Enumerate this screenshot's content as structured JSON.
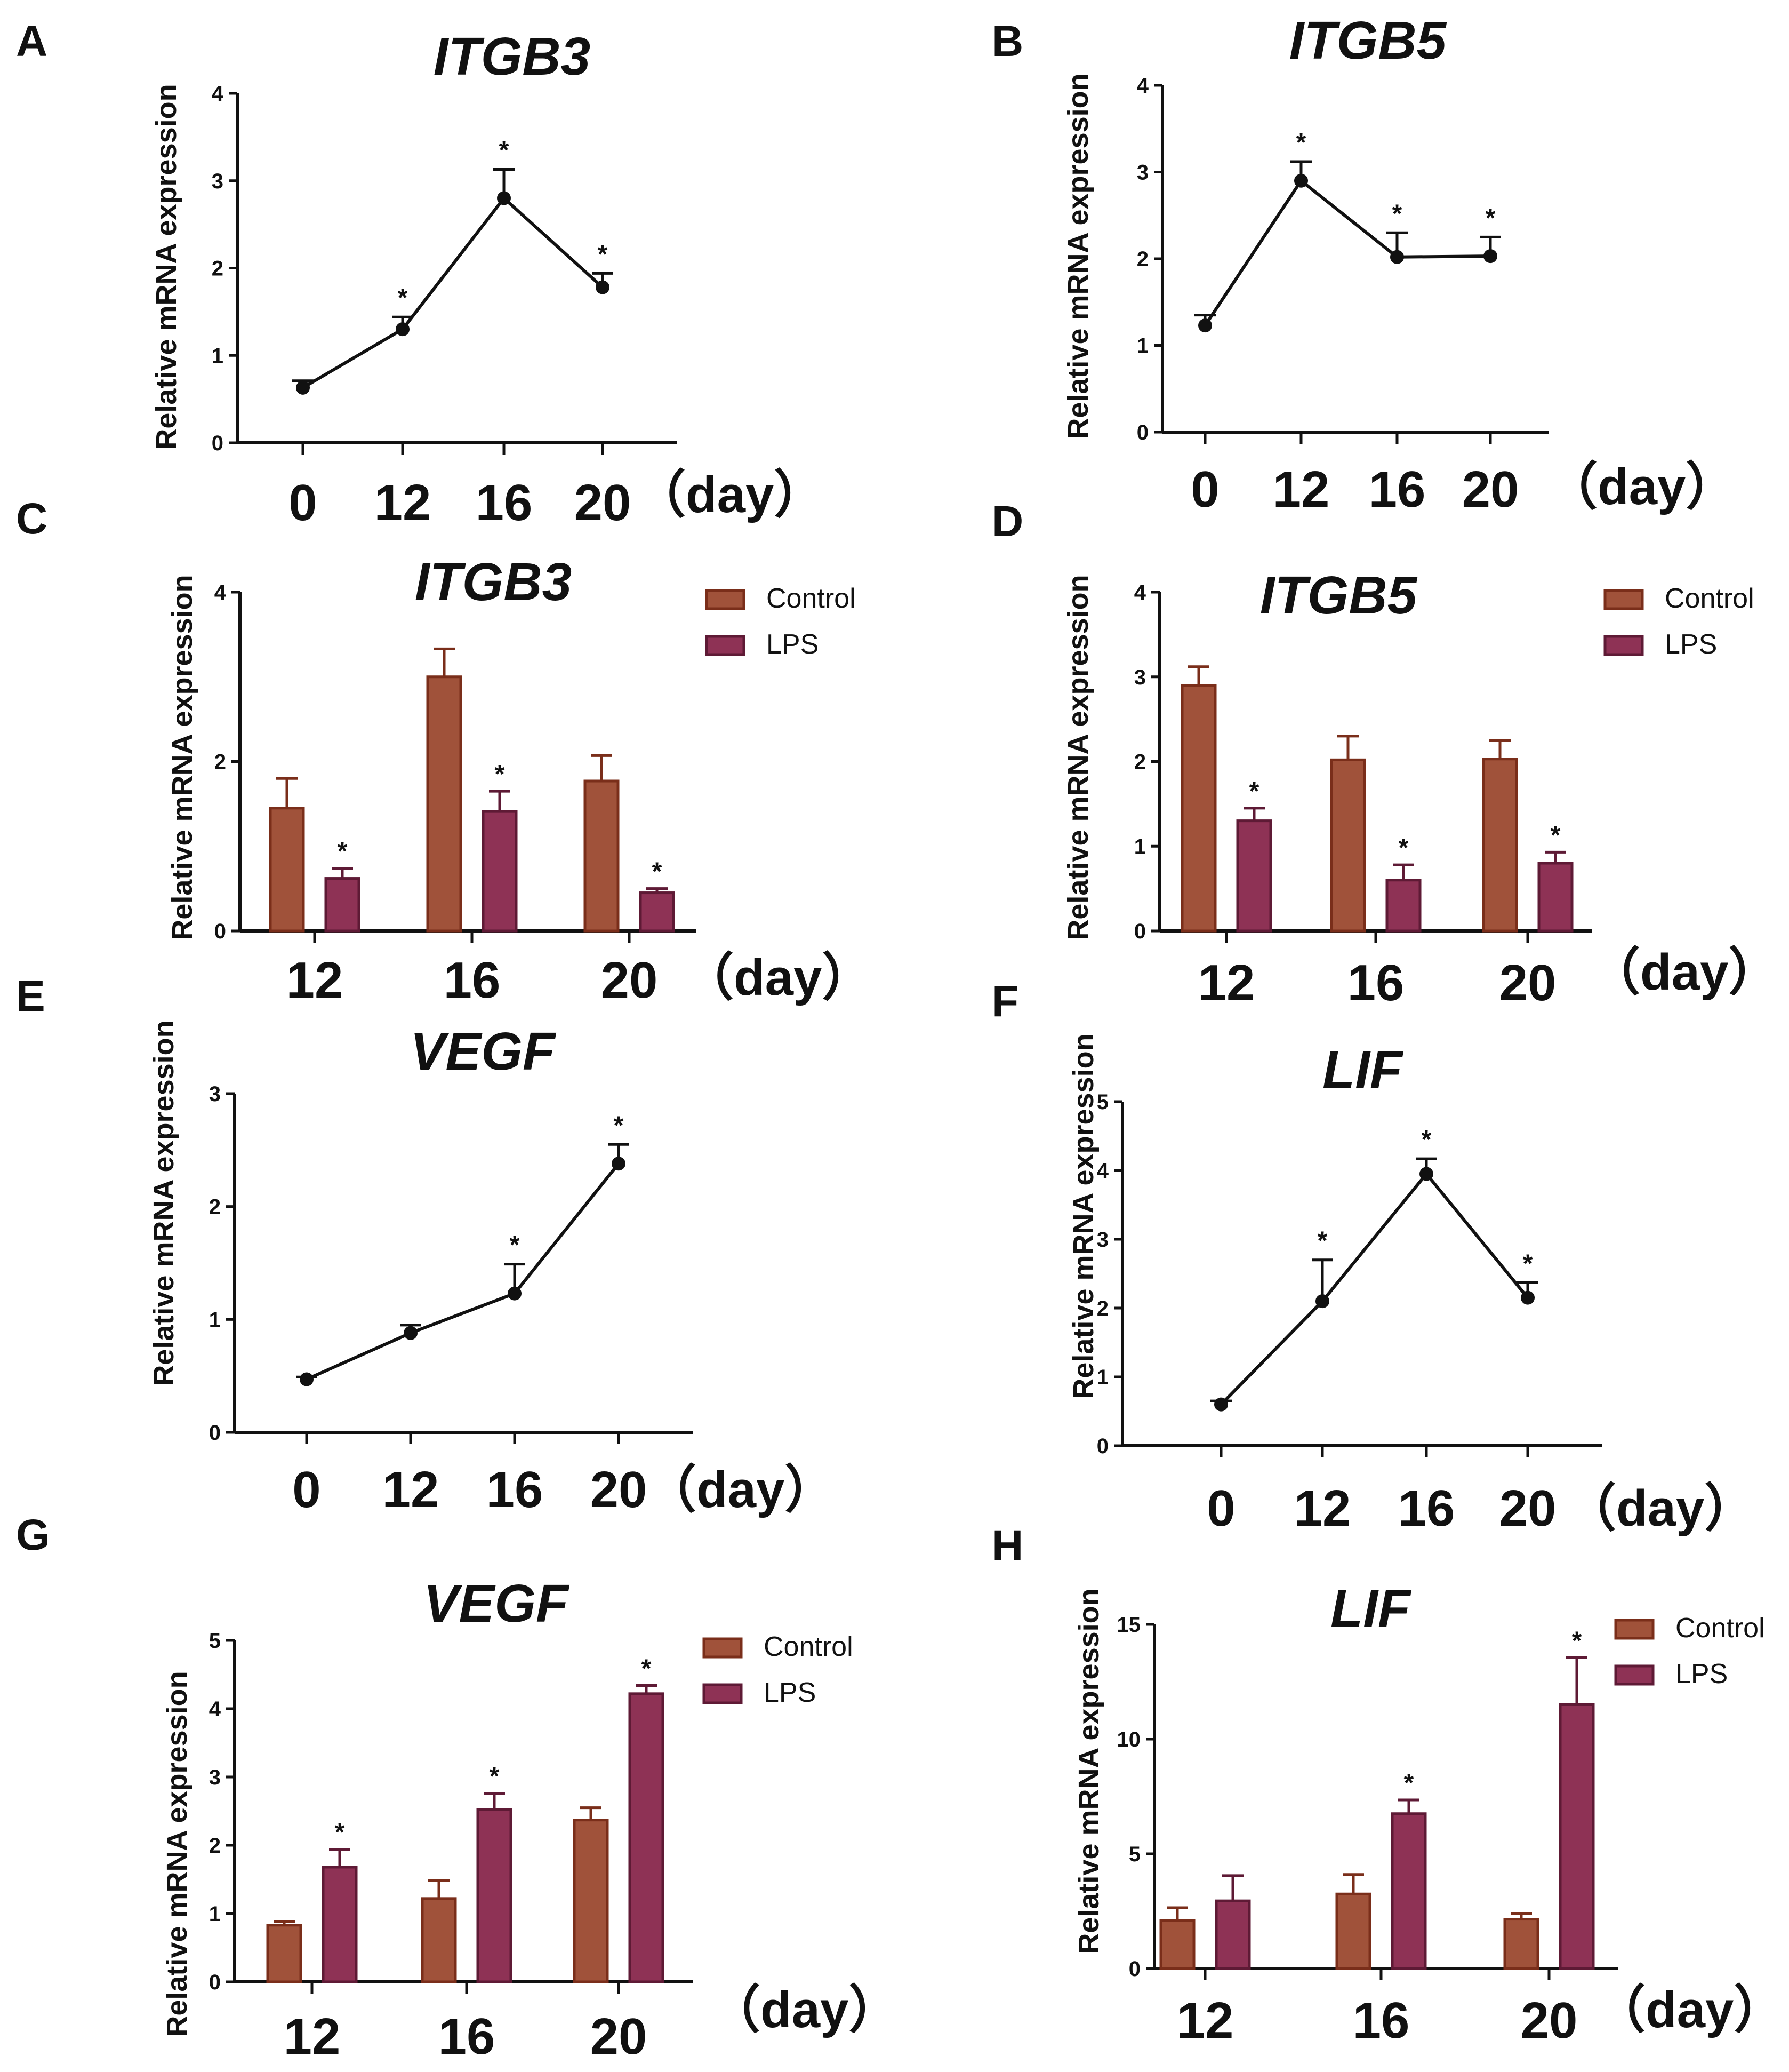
{
  "colors": {
    "control": "#A0523A",
    "control_edge": "#7A2E1A",
    "lps": "#8E3255",
    "lps_edge": "#5E1A35",
    "ink": "#111111"
  },
  "legend": {
    "control_label": "Control",
    "lps_label": "LPS"
  },
  "chart_data": [
    {
      "panel": "A",
      "type": "line",
      "title": "ITGB3",
      "ylabel": "Relative mRNA expression",
      "x_unit": "（day）",
      "categories": [
        "0",
        "12",
        "16",
        "20"
      ],
      "values": [
        0.63,
        1.3,
        2.8,
        1.78
      ],
      "errors": [
        0.08,
        0.14,
        0.33,
        0.16
      ],
      "significant": [
        false,
        true,
        true,
        true
      ],
      "ylim": [
        0,
        4
      ],
      "yticks": [
        "0",
        "1",
        "2",
        "3",
        "4"
      ]
    },
    {
      "panel": "B",
      "type": "line",
      "title": "ITGB5",
      "ylabel": "Relative mRNA expression",
      "x_unit": "（day）",
      "categories": [
        "0",
        "12",
        "16",
        "20"
      ],
      "values": [
        1.23,
        2.9,
        2.02,
        2.03
      ],
      "errors": [
        0.12,
        0.22,
        0.28,
        0.22
      ],
      "significant": [
        false,
        true,
        true,
        true
      ],
      "ylim": [
        0,
        4
      ],
      "yticks": [
        "0",
        "1",
        "2",
        "3",
        "4"
      ]
    },
    {
      "panel": "C",
      "type": "bar",
      "title": "ITGB3",
      "ylabel": "Relative mRNA expression",
      "x_unit": "（day）",
      "categories": [
        "12",
        "16",
        "20"
      ],
      "ylim": [
        0,
        4
      ],
      "yticks": [
        "0",
        "2",
        "4"
      ],
      "series": [
        {
          "name": "Control",
          "values": [
            1.45,
            3.0,
            1.77
          ],
          "errors": [
            0.35,
            0.33,
            0.3
          ],
          "significant": [
            false,
            false,
            false
          ]
        },
        {
          "name": "LPS",
          "values": [
            0.62,
            1.41,
            0.45
          ],
          "errors": [
            0.12,
            0.24,
            0.05
          ],
          "significant": [
            true,
            true,
            true
          ]
        }
      ]
    },
    {
      "panel": "D",
      "type": "bar",
      "title": "ITGB5",
      "ylabel": "Relative mRNA expression",
      "x_unit": "（day）",
      "categories": [
        "12",
        "16",
        "20"
      ],
      "ylim": [
        0,
        4
      ],
      "yticks": [
        "0",
        "1",
        "2",
        "3",
        "4"
      ],
      "series": [
        {
          "name": "Control",
          "values": [
            2.9,
            2.02,
            2.03
          ],
          "errors": [
            0.22,
            0.28,
            0.22
          ],
          "significant": [
            false,
            false,
            false
          ]
        },
        {
          "name": "LPS",
          "values": [
            1.3,
            0.6,
            0.8
          ],
          "errors": [
            0.15,
            0.18,
            0.13
          ],
          "significant": [
            true,
            true,
            true
          ]
        }
      ]
    },
    {
      "panel": "E",
      "type": "line",
      "title": "VEGF",
      "ylabel": "Relative mRNA expression",
      "x_unit": "（day）",
      "categories": [
        "0",
        "12",
        "16",
        "20"
      ],
      "values": [
        0.47,
        0.88,
        1.23,
        2.38
      ],
      "errors": [
        0.02,
        0.07,
        0.26,
        0.17
      ],
      "significant": [
        false,
        false,
        true,
        true
      ],
      "ylim": [
        0,
        3
      ],
      "yticks": [
        "0",
        "1",
        "2",
        "3"
      ]
    },
    {
      "panel": "F",
      "type": "line",
      "title": "LIF",
      "ylabel": "Relative mRNA expression",
      "x_unit": "（day）",
      "categories": [
        "0",
        "12",
        "16",
        "20"
      ],
      "values": [
        0.6,
        2.1,
        3.95,
        2.15
      ],
      "errors": [
        0.05,
        0.6,
        0.22,
        0.22
      ],
      "significant": [
        false,
        true,
        true,
        true
      ],
      "ylim": [
        0,
        5
      ],
      "yticks": [
        "0",
        "1",
        "2",
        "3",
        "4",
        "5"
      ]
    },
    {
      "panel": "G",
      "type": "bar",
      "title": "VEGF",
      "ylabel": "Relative mRNA expression",
      "x_unit": "（day）",
      "categories": [
        "12",
        "16",
        "20"
      ],
      "ylim": [
        0,
        5
      ],
      "yticks": [
        "0",
        "1",
        "2",
        "3",
        "4",
        "5"
      ],
      "series": [
        {
          "name": "Control",
          "values": [
            0.83,
            1.22,
            2.37
          ],
          "errors": [
            0.05,
            0.26,
            0.18
          ],
          "significant": [
            false,
            false,
            false
          ]
        },
        {
          "name": "LPS",
          "values": [
            1.68,
            2.52,
            4.22
          ],
          "errors": [
            0.26,
            0.24,
            0.12
          ],
          "significant": [
            true,
            true,
            true
          ]
        }
      ]
    },
    {
      "panel": "H",
      "type": "bar",
      "title": "LIF",
      "ylabel": "Relative mRNA expression",
      "x_unit": "（day）",
      "categories": [
        "12",
        "16",
        "20"
      ],
      "ylim": [
        0,
        15
      ],
      "yticks": [
        "0",
        "5",
        "10",
        "15"
      ],
      "series": [
        {
          "name": "Control",
          "values": [
            2.1,
            3.25,
            2.15
          ],
          "errors": [
            0.55,
            0.85,
            0.25
          ],
          "significant": [
            false,
            false,
            false
          ]
        },
        {
          "name": "LPS",
          "values": [
            2.95,
            6.75,
            11.5
          ],
          "errors": [
            1.1,
            0.6,
            2.05
          ],
          "significant": [
            false,
            true,
            true
          ]
        }
      ]
    }
  ]
}
